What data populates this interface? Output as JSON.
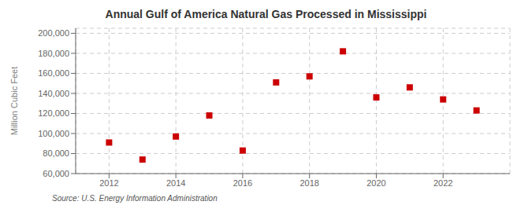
{
  "chart_data": {
    "type": "scatter",
    "title": "Annual Gulf of America Natural Gas Processed in Mississippi",
    "ylabel": "Million Cubic Feet",
    "annotation": "Source: U.S. Energy Information Administration",
    "x": [
      2012,
      2013,
      2014,
      2015,
      2016,
      2017,
      2018,
      2019,
      2020,
      2021,
      2022,
      2023
    ],
    "values": [
      91000,
      74000,
      97000,
      118000,
      83000,
      151000,
      157000,
      182000,
      136000,
      146000,
      134000,
      123000
    ],
    "color": "#cc0000",
    "marker": "square",
    "xlim": [
      2011,
      2024
    ],
    "xticks": [
      2012,
      2014,
      2016,
      2018,
      2020,
      2022
    ],
    "ylim": [
      60000,
      205000
    ],
    "yticks": [
      {
        "value": 60000,
        "label": "60,000"
      },
      {
        "value": 80000,
        "label": "80,000"
      },
      {
        "value": 100000,
        "label": "100,000"
      },
      {
        "value": 120000,
        "label": "120,000"
      },
      {
        "value": 140000,
        "label": "140,000"
      },
      {
        "value": 160000,
        "label": "160,000"
      },
      {
        "value": 180000,
        "label": "180,000"
      },
      {
        "value": 200000,
        "label": "200,000"
      }
    ],
    "grid": true
  }
}
